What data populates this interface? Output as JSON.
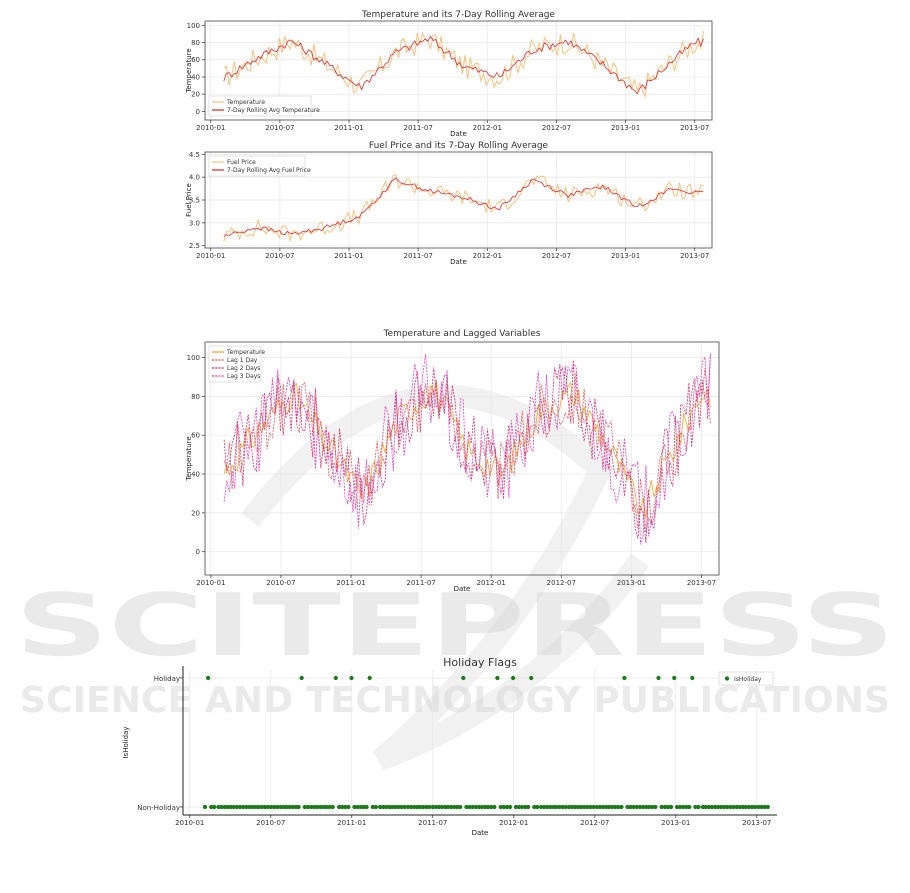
{
  "watermark": {
    "line1": "SCITEPRESS",
    "line2": "SCIENCE AND TECHNOLOGY PUBLICATIONS"
  },
  "chart_data": [
    {
      "id": "c1",
      "type": "line",
      "title": "Temperature and its 7-Day Rolling Average",
      "xlabel": "Date",
      "ylabel": "Temperature",
      "xticks": [
        "2010-01",
        "2010-07",
        "2011-01",
        "2011-07",
        "2012-01",
        "2012-07",
        "2013-01",
        "2013-07"
      ],
      "yticks": [
        "0",
        "20",
        "40",
        "60",
        "80",
        "100"
      ],
      "ylim": [
        -10,
        105
      ],
      "grid": true,
      "legend_position": "bottom-left",
      "x": [
        "2010-02",
        "2010-05",
        "2010-08",
        "2010-11",
        "2011-02",
        "2011-05",
        "2011-08",
        "2011-11",
        "2012-02",
        "2012-05",
        "2012-08",
        "2012-11",
        "2013-02",
        "2013-05",
        "2013-07"
      ],
      "series": [
        {
          "name": "Temperature",
          "color": "#f5c07a",
          "values": [
            38,
            62,
            82,
            55,
            28,
            68,
            85,
            52,
            40,
            72,
            82,
            55,
            22,
            58,
            80
          ],
          "spread": 14
        },
        {
          "name": "7-Day Rolling Avg Temperature",
          "color": "#e02020",
          "values": [
            38,
            62,
            82,
            55,
            28,
            68,
            85,
            52,
            40,
            72,
            82,
            55,
            22,
            58,
            80
          ],
          "spread": 5
        }
      ]
    },
    {
      "id": "c2",
      "type": "line",
      "title": "Fuel Price and its 7-Day Rolling Average",
      "xlabel": "Date",
      "ylabel": "Fuel Price",
      "xticks": [
        "2010-01",
        "2010-07",
        "2011-01",
        "2011-07",
        "2012-01",
        "2012-07",
        "2013-01",
        "2013-07"
      ],
      "yticks": [
        "2.5",
        "3.0",
        "3.5",
        "4.0",
        "4.5"
      ],
      "ylim": [
        2.45,
        4.55
      ],
      "grid": true,
      "legend_position": "top-left",
      "x": [
        "2010-02",
        "2010-05",
        "2010-08",
        "2010-11",
        "2011-02",
        "2011-05",
        "2011-08",
        "2011-11",
        "2012-02",
        "2012-05",
        "2012-08",
        "2012-11",
        "2013-02",
        "2013-05",
        "2013-07"
      ],
      "series": [
        {
          "name": "Fuel Price",
          "color": "#f5c07a",
          "values": [
            2.7,
            2.9,
            2.75,
            2.9,
            3.15,
            3.95,
            3.7,
            3.55,
            3.3,
            3.95,
            3.6,
            3.8,
            3.35,
            3.75,
            3.65
          ],
          "spread": 0.18
        },
        {
          "name": "7-Day Rolling Avg Fuel Price",
          "color": "#e02020",
          "values": [
            2.7,
            2.9,
            2.75,
            2.9,
            3.15,
            3.95,
            3.7,
            3.55,
            3.3,
            3.95,
            3.6,
            3.8,
            3.35,
            3.75,
            3.65
          ],
          "spread": 0.05
        }
      ]
    },
    {
      "id": "c3",
      "type": "line",
      "title": "Temperature and Lagged Variables",
      "xlabel": "Date",
      "ylabel": "Temperature",
      "xticks": [
        "2010-01",
        "2010-07",
        "2011-01",
        "2011-07",
        "2012-01",
        "2012-07",
        "2013-01",
        "2013-07"
      ],
      "yticks": [
        "0",
        "20",
        "40",
        "60",
        "80",
        "100"
      ],
      "ylim": [
        -12,
        108
      ],
      "grid": true,
      "legend_position": "top-left",
      "x": [
        "2010-02",
        "2010-05",
        "2010-08",
        "2010-11",
        "2011-02",
        "2011-05",
        "2011-08",
        "2011-11",
        "2012-02",
        "2012-05",
        "2012-08",
        "2012-11",
        "2013-02",
        "2013-05",
        "2013-07"
      ],
      "series": [
        {
          "name": "Temperature",
          "color": "#f0a020",
          "values": [
            40,
            62,
            82,
            55,
            28,
            68,
            85,
            52,
            40,
            72,
            82,
            55,
            20,
            58,
            82
          ],
          "spread": 8
        },
        {
          "name": "Lag 1 Day",
          "color": "#e05050",
          "values": [
            40,
            62,
            82,
            55,
            28,
            68,
            85,
            52,
            40,
            72,
            82,
            55,
            20,
            58,
            82
          ],
          "spread": 16
        },
        {
          "name": "Lag 2 Days",
          "color": "#d82060",
          "values": [
            40,
            62,
            82,
            55,
            28,
            68,
            85,
            52,
            40,
            72,
            82,
            55,
            20,
            58,
            82
          ],
          "spread": 20
        },
        {
          "name": "Lag 3 Days",
          "color": "#e030c0",
          "values": [
            40,
            62,
            82,
            55,
            28,
            68,
            85,
            52,
            40,
            72,
            82,
            55,
            20,
            58,
            82
          ],
          "spread": 22
        }
      ]
    },
    {
      "id": "c4",
      "type": "scatter",
      "title": "Holiday Flags",
      "xlabel": "Date",
      "ylabel": "IsHoliday",
      "xticks": [
        "2010-01",
        "2010-07",
        "2011-01",
        "2011-07",
        "2012-01",
        "2012-07",
        "2013-01",
        "2013-07"
      ],
      "yticks": [
        "Non-Holiday",
        "Holiday"
      ],
      "grid": true,
      "legend_position": "top-right",
      "series": [
        {
          "name": "IsHoliday",
          "color": "#1a7a1a"
        }
      ],
      "holiday_dates": [
        "2010-02-12",
        "2010-09-10",
        "2010-11-26",
        "2010-12-31",
        "2011-02-11",
        "2011-09-09",
        "2011-11-25",
        "2011-12-30",
        "2012-02-10",
        "2012-09-07",
        "2012-11-23",
        "2012-12-28",
        "2013-02-08"
      ],
      "date_range": [
        "2010-02-05",
        "2013-07-26"
      ]
    }
  ]
}
